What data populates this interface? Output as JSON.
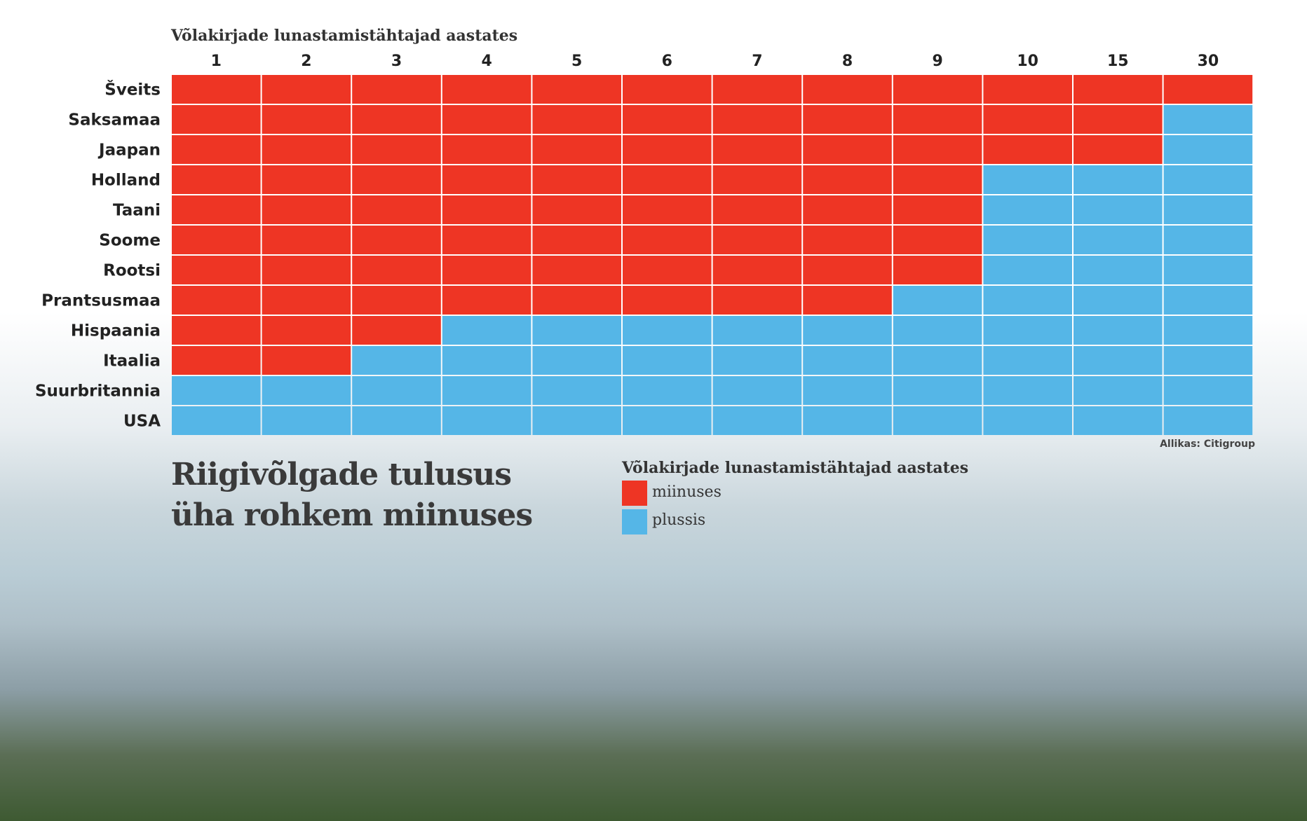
{
  "colors": {
    "negative": "#ee3524",
    "positive": "#55b6e7"
  },
  "title_lines": [
    "Riigivõlgade tulusus",
    "üha rohkem miinuses"
  ],
  "source": "Allikas: Citigroup",
  "legend": {
    "title": "Võlakirjade lunastamistähtajad aastates",
    "items": [
      {
        "label": "miinuses",
        "color": "#ee3524"
      },
      {
        "label": "plussis",
        "color": "#55b6e7"
      }
    ]
  },
  "chart_data": {
    "type": "heatmap",
    "xlabel": "Võlakirjade lunastamistähtajad aastates",
    "x": [
      "1",
      "2",
      "3",
      "4",
      "5",
      "6",
      "7",
      "8",
      "9",
      "10",
      "15",
      "30"
    ],
    "y": [
      "Šveits",
      "Saksamaa",
      "Jaapan",
      "Holland",
      "Taani",
      "Soome",
      "Rootsi",
      "Prantsusmaa",
      "Hispaania",
      "Itaalia",
      "Suurbritannia",
      "USA"
    ],
    "negative_maturities_count": [
      12,
      11,
      11,
      9,
      9,
      9,
      9,
      8,
      3,
      2,
      0,
      0
    ],
    "categories": {
      "negative": "miinuses",
      "positive": "plussis"
    }
  }
}
